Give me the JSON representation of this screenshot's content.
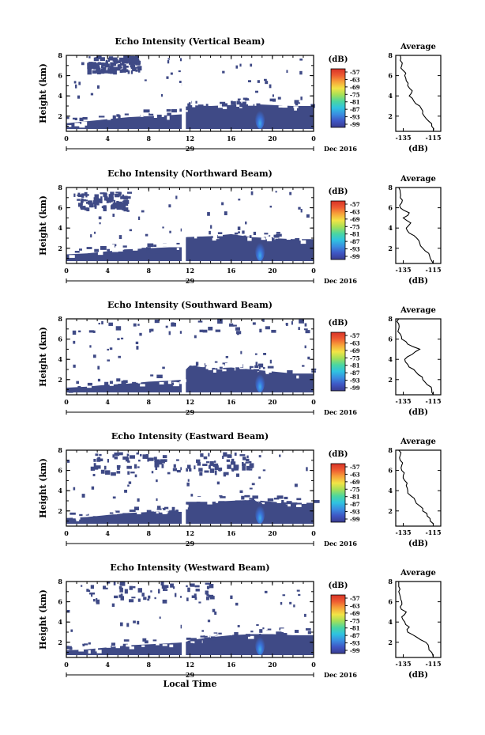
{
  "chart_data": [
    {
      "type": "heatmap",
      "title": "Echo Intensity (Vertical Beam)",
      "ylabel": "Height (km)",
      "xlabel": "",
      "x_ticks": [
        "0",
        "4",
        "8",
        "12",
        "16",
        "20",
        "0"
      ],
      "y_ticks": [
        "2",
        "4",
        "6",
        "8"
      ],
      "xlim": [
        0,
        24
      ],
      "ylim": [
        0.5,
        8
      ],
      "date_day": "29",
      "date_month": "Dec 2016",
      "colorbar_unit": "(dB)",
      "colorbar_ticks": [
        "-57",
        "-63",
        "-69",
        "-75",
        "-81",
        "-87",
        "-93",
        "-99"
      ],
      "upper_echo": [
        2,
        7,
        8.0,
        6.5,
        0.55
      ],
      "boundary_layer_top": [
        [
          0,
          1.3
        ],
        [
          2,
          1.5
        ],
        [
          4,
          1.7
        ],
        [
          6,
          1.9
        ],
        [
          8,
          2.0
        ],
        [
          10,
          2.1
        ],
        [
          11.5,
          2.2
        ],
        [
          11.6,
          3.1
        ],
        [
          14,
          3.0
        ],
        [
          16,
          3.1
        ],
        [
          18,
          3.2
        ],
        [
          20,
          3.1
        ],
        [
          22,
          3.0
        ],
        [
          24,
          3.0
        ]
      ],
      "gap_x": [
        11.2,
        11.6
      ],
      "average_profile": {
        "title": "Average",
        "xlabel": "(dB)",
        "x_ticks": [
          "-135",
          "-115"
        ],
        "xlim": [
          -140,
          -110
        ],
        "y_ticks": [
          "2",
          "4",
          "6",
          "8"
        ],
        "ylim": [
          0.5,
          8
        ],
        "height_km": [
          0.5,
          1.0,
          1.5,
          2.0,
          2.5,
          3.0,
          3.5,
          4.0,
          4.5,
          5.0,
          5.5,
          6.0,
          6.5,
          7.0,
          7.5,
          8.0
        ],
        "db": [
          -115,
          -116,
          -118,
          -121,
          -122,
          -124,
          -128,
          -131,
          -129,
          -132,
          -133,
          -134,
          -135,
          -136,
          -137,
          -137
        ]
      }
    },
    {
      "type": "heatmap",
      "title": "Echo Intensity (Northward Beam)",
      "ylabel": "Height (km)",
      "xlabel": "",
      "x_ticks": [
        "0",
        "4",
        "8",
        "12",
        "16",
        "20",
        "0"
      ],
      "y_ticks": [
        "2",
        "4",
        "6",
        "8"
      ],
      "xlim": [
        0,
        24
      ],
      "ylim": [
        0.5,
        8
      ],
      "date_day": "29",
      "date_month": "Dec 2016",
      "colorbar_unit": "(dB)",
      "colorbar_ticks": [
        "-57",
        "-63",
        "-69",
        "-75",
        "-81",
        "-87",
        "-93",
        "-99"
      ],
      "upper_echo": [
        1,
        6,
        7.6,
        6.0,
        0.35
      ],
      "boundary_layer_top": [
        [
          0,
          1.4
        ],
        [
          2,
          1.5
        ],
        [
          4,
          1.7
        ],
        [
          6,
          1.9
        ],
        [
          8,
          2.0
        ],
        [
          10,
          2.1
        ],
        [
          11.5,
          2.1
        ],
        [
          11.6,
          3.1
        ],
        [
          14,
          3.2
        ],
        [
          16,
          3.4
        ],
        [
          18,
          3.1
        ],
        [
          20,
          3.0
        ],
        [
          22,
          2.9
        ],
        [
          24,
          2.9
        ]
      ],
      "gap_x": [
        11.2,
        11.6
      ],
      "average_profile": {
        "title": "Average",
        "xlabel": "(dB)",
        "x_ticks": [
          "-135",
          "-115"
        ],
        "xlim": [
          -140,
          -110
        ],
        "y_ticks": [
          "2",
          "4",
          "6",
          "8"
        ],
        "ylim": [
          0.5,
          8
        ],
        "height_km": [
          0.5,
          1.0,
          1.5,
          2.0,
          2.5,
          3.0,
          3.5,
          4.0,
          4.5,
          5.0,
          5.5,
          6.0,
          6.5,
          7.0,
          7.5,
          8.0
        ],
        "db": [
          -115,
          -117,
          -118,
          -122,
          -124,
          -126,
          -131,
          -133,
          -130,
          -135,
          -131,
          -137,
          -136,
          -137,
          -137,
          -138
        ]
      }
    },
    {
      "type": "heatmap",
      "title": "Echo Intensity (Southward Beam)",
      "ylabel": "Height (km)",
      "xlabel": "",
      "x_ticks": [
        "0",
        "4",
        "8",
        "12",
        "16",
        "20",
        "0"
      ],
      "y_ticks": [
        "2",
        "4",
        "6",
        "8"
      ],
      "xlim": [
        0,
        24
      ],
      "ylim": [
        0.5,
        8
      ],
      "date_day": "29",
      "date_month": "Dec 2016",
      "colorbar_unit": "(dB)",
      "colorbar_ticks": [
        "-57",
        "-63",
        "-69",
        "-75",
        "-81",
        "-87",
        "-93",
        "-99"
      ],
      "upper_echo": [
        0,
        24,
        8.0,
        6.8,
        0.12
      ],
      "boundary_layer_top": [
        [
          0,
          1.2
        ],
        [
          2,
          1.3
        ],
        [
          4,
          1.5
        ],
        [
          6,
          1.6
        ],
        [
          8,
          1.8
        ],
        [
          10,
          1.9
        ],
        [
          11.5,
          2.0
        ],
        [
          11.6,
          3.0
        ],
        [
          12,
          3.4
        ],
        [
          14,
          3.1
        ],
        [
          16,
          3.2
        ],
        [
          18,
          3.0
        ],
        [
          20,
          2.8
        ],
        [
          22,
          2.6
        ],
        [
          24,
          2.6
        ]
      ],
      "gap_x": [
        11.2,
        11.6
      ],
      "average_profile": {
        "title": "Average",
        "xlabel": "(dB)",
        "x_ticks": [
          "-135",
          "-115"
        ],
        "xlim": [
          -140,
          -110
        ],
        "y_ticks": [
          "2",
          "4",
          "6",
          "8"
        ],
        "ylim": [
          0.5,
          8
        ],
        "height_km": [
          0.5,
          1.0,
          1.5,
          2.0,
          2.5,
          3.0,
          3.5,
          4.0,
          4.5,
          5.0,
          5.5,
          6.0,
          6.5,
          7.0,
          7.5,
          8.0
        ],
        "db": [
          -115,
          -116,
          -119,
          -122,
          -125,
          -128,
          -132,
          -134,
          -129,
          -124,
          -132,
          -136,
          -137,
          -138,
          -138,
          -138
        ]
      }
    },
    {
      "type": "heatmap",
      "title": "Echo Intensity (Eastward Beam)",
      "ylabel": "Height (km)",
      "xlabel": "",
      "x_ticks": [
        "0",
        "4",
        "8",
        "12",
        "16",
        "20",
        "0"
      ],
      "y_ticks": [
        "2",
        "4",
        "6",
        "8"
      ],
      "xlim": [
        0,
        24
      ],
      "ylim": [
        0.5,
        8
      ],
      "date_day": "29",
      "date_month": "Dec 2016",
      "colorbar_unit": "(dB)",
      "colorbar_ticks": [
        "-57",
        "-63",
        "-69",
        "-75",
        "-81",
        "-87",
        "-93",
        "-99"
      ],
      "upper_echo": [
        2,
        18,
        7.8,
        5.8,
        0.4
      ],
      "boundary_layer_top": [
        [
          0,
          1.3
        ],
        [
          2,
          1.4
        ],
        [
          4,
          1.6
        ],
        [
          6,
          1.8
        ],
        [
          8,
          1.9
        ],
        [
          10,
          2.0
        ],
        [
          11.5,
          2.1
        ],
        [
          11.6,
          2.9
        ],
        [
          14,
          2.9
        ],
        [
          16,
          3.0
        ],
        [
          18,
          3.1
        ],
        [
          20,
          2.9
        ],
        [
          22,
          2.8
        ],
        [
          24,
          2.8
        ]
      ],
      "gap_x": [
        11.2,
        11.6
      ],
      "average_profile": {
        "title": "Average",
        "xlabel": "(dB)",
        "x_ticks": [
          "-135",
          "-115"
        ],
        "xlim": [
          -140,
          -110
        ],
        "y_ticks": [
          "2",
          "4",
          "6",
          "8"
        ],
        "ylim": [
          0.5,
          8
        ],
        "height_km": [
          0.5,
          1.0,
          1.5,
          2.0,
          2.5,
          3.0,
          3.5,
          4.0,
          4.5,
          5.0,
          5.5,
          6.0,
          6.5,
          7.0,
          7.5,
          8.0
        ],
        "db": [
          -115,
          -117,
          -119,
          -122,
          -124,
          -127,
          -130,
          -132,
          -133,
          -134,
          -135,
          -136,
          -136,
          -137,
          -137,
          -138
        ]
      }
    },
    {
      "type": "heatmap",
      "title": "Echo Intensity (Westward Beam)",
      "ylabel": "Height (km)",
      "xlabel": "Local Time",
      "x_ticks": [
        "0",
        "4",
        "8",
        "12",
        "16",
        "20",
        "0"
      ],
      "y_ticks": [
        "2",
        "4",
        "6",
        "8"
      ],
      "xlim": [
        0,
        24
      ],
      "ylim": [
        0.5,
        8
      ],
      "date_day": "29",
      "date_month": "Dec 2016",
      "colorbar_unit": "(dB)",
      "colorbar_ticks": [
        "-57",
        "-63",
        "-69",
        "-75",
        "-81",
        "-87",
        "-93",
        "-99"
      ],
      "upper_echo": [
        2,
        14,
        8.0,
        6.2,
        0.2
      ],
      "boundary_layer_top": [
        [
          0,
          1.2
        ],
        [
          2,
          1.3
        ],
        [
          4,
          1.5
        ],
        [
          6,
          1.7
        ],
        [
          8,
          1.8
        ],
        [
          10,
          1.9
        ],
        [
          11.5,
          2.0
        ],
        [
          12,
          2.2
        ],
        [
          14,
          2.5
        ],
        [
          16,
          2.7
        ],
        [
          18,
          2.8
        ],
        [
          20,
          2.8
        ],
        [
          22,
          2.7
        ],
        [
          24,
          2.7
        ]
      ],
      "gap_x": [
        11.2,
        11.6
      ],
      "average_profile": {
        "title": "Average",
        "xlabel": "(dB)",
        "x_ticks": [
          "-135",
          "-115"
        ],
        "xlim": [
          -140,
          -110
        ],
        "y_ticks": [
          "2",
          "4",
          "6",
          "8"
        ],
        "ylim": [
          0.5,
          8
        ],
        "height_km": [
          0.5,
          1.0,
          1.5,
          2.0,
          2.5,
          3.0,
          3.5,
          4.0,
          4.5,
          5.0,
          5.5,
          6.0,
          6.5,
          7.0,
          7.5,
          8.0
        ],
        "db": [
          -115,
          -116,
          -118,
          -120,
          -126,
          -132,
          -131,
          -134,
          -136,
          -133,
          -137,
          -136,
          -137,
          -138,
          -138,
          -138
        ]
      }
    }
  ],
  "colors": {
    "echo_fill": "#3f4a86",
    "colorbar": [
      "#3a3c8f",
      "#3f56c4",
      "#3a8de0",
      "#2fc3e0",
      "#4bd6a0",
      "#a4e058",
      "#f2e446",
      "#f7a43a",
      "#ee5b32",
      "#d83227"
    ]
  }
}
